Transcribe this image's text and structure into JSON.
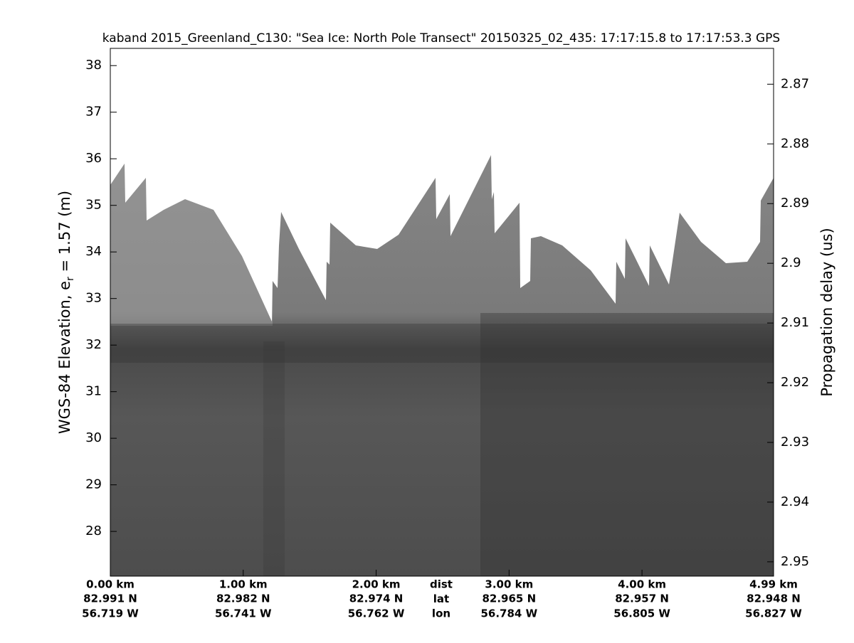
{
  "chart_data": {
    "type": "echogram",
    "title": "kaband 2015_Greenland_C130: \"Sea Ice: North Pole Transect\"  20150325_02_435: 17:17:15.8 to 17:17:53.3 GPS",
    "ylabel": {
      "text": "WGS-84 Elevation, e",
      "subscript": "r",
      "rest": " = 1.57 (m)"
    },
    "y2label": "Propagation delay (us)",
    "ylim": [
      27.04,
      38.37
    ],
    "yticks": [
      28,
      29,
      30,
      31,
      32,
      33,
      34,
      35,
      36,
      37,
      38
    ],
    "y2lim": [
      2.9524,
      2.864
    ],
    "y2ticks": [
      2.87,
      2.88,
      2.89,
      2.9,
      2.91,
      2.92,
      2.93,
      2.94,
      2.95
    ],
    "xlim": [
      0,
      4.99
    ],
    "xticks": [
      {
        "value": 0,
        "label": "0.00 km"
      },
      {
        "value": 1,
        "label": "1.00 km"
      },
      {
        "value": 2,
        "label": "2.00 km"
      },
      {
        "value": 3,
        "label": "3.00 km"
      },
      {
        "value": 4,
        "label": "4.00 km"
      },
      {
        "value": 4.99,
        "label": "4.99 km"
      }
    ],
    "lat_labels": [
      "82.991 N",
      "82.982 N",
      "82.974 N",
      "82.965 N",
      "82.957 N",
      "82.948 N"
    ],
    "lon_labels": [
      "56.719 W",
      "56.741 W",
      "56.762 W",
      "56.784 W",
      "56.805 W",
      "56.827 W"
    ],
    "row_names": [
      "dist",
      "lat",
      "lon"
    ]
  }
}
